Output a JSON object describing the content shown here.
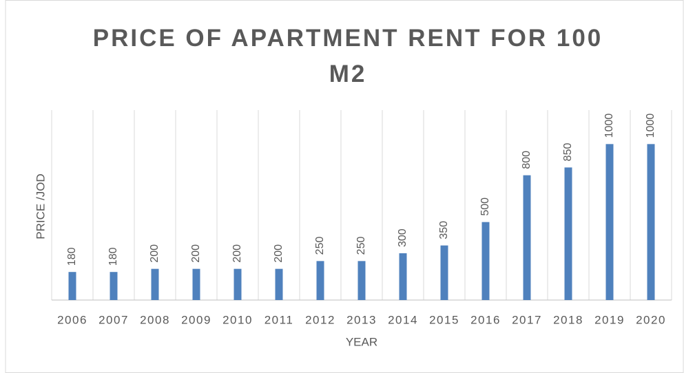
{
  "chart_data": {
    "type": "bar",
    "title": "PRICE OF APARTMENT RENT FOR 100 M2",
    "x_label": "YEAR",
    "y_label": "PRICE /JOD",
    "categories": [
      "2006",
      "2007",
      "2008",
      "2009",
      "2010",
      "2011",
      "2012",
      "2013",
      "2014",
      "2015",
      "2016",
      "2017",
      "2018",
      "2019",
      "2020"
    ],
    "values": [
      180,
      180,
      200,
      200,
      200,
      200,
      250,
      250,
      300,
      350,
      500,
      800,
      850,
      1000,
      1000
    ],
    "color": "#4f81bd",
    "ylim": [
      0,
      1200
    ],
    "grid": "vertical"
  }
}
